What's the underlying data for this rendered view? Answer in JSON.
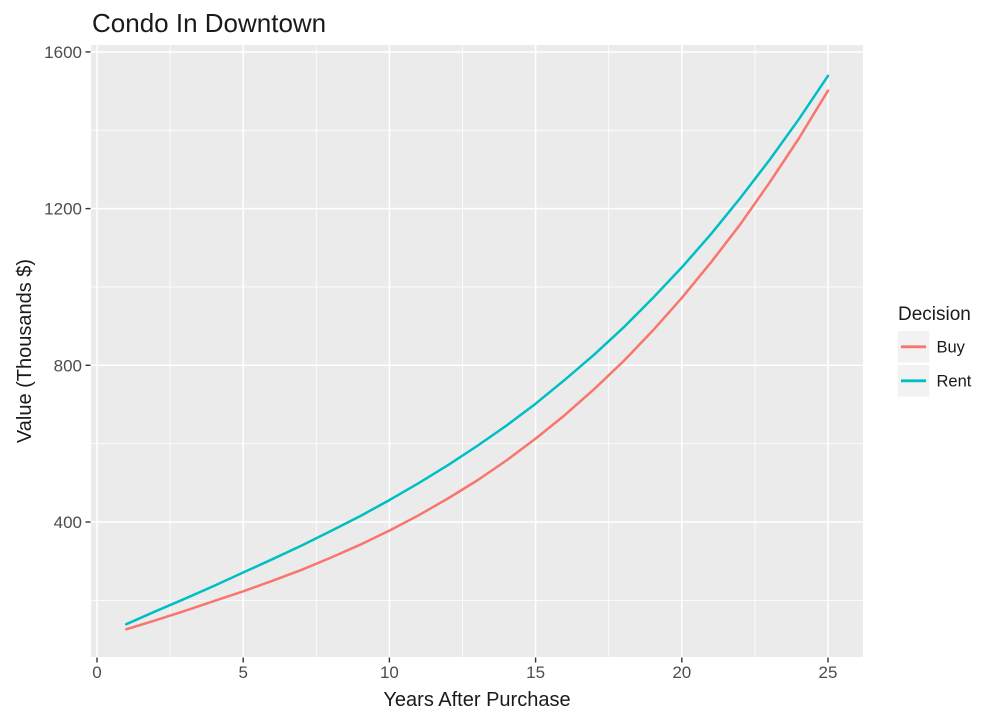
{
  "chart_data": {
    "type": "line",
    "title": "Condo In Downtown",
    "xlabel": "Years After Purchase",
    "ylabel": "Value (Thousands $)",
    "legend": {
      "title": "Decision",
      "position": "right"
    },
    "x_ticks": [
      0,
      5,
      10,
      15,
      20,
      25
    ],
    "y_ticks": [
      400,
      800,
      1200,
      1600
    ],
    "x_minor_ticks": [
      2.5,
      7.5,
      12.5,
      17.5,
      22.5
    ],
    "y_minor_ticks": [
      200,
      600,
      1000,
      1400
    ],
    "xlim": [
      -0.2,
      26.2
    ],
    "ylim": [
      55,
      1610
    ],
    "grid": "white major and minor gridlines on gray panel",
    "panel_bg": "#EBEBEB",
    "grid_color": "#FFFFFF",
    "x": [
      1,
      2,
      3,
      4,
      5,
      6,
      7,
      8,
      9,
      10,
      11,
      12,
      13,
      14,
      15,
      16,
      17,
      18,
      19,
      20,
      21,
      22,
      23,
      24,
      25
    ],
    "series": [
      {
        "name": "Buy",
        "color": "#F8766D",
        "values": [
          126,
          149,
          173,
          198,
          223,
          250,
          278,
          309,
          342,
          378,
          417,
          460,
          506,
          557,
          613,
          673,
          739,
          810,
          888,
          972,
          1063,
          1160,
          1266,
          1379,
          1501
        ]
      },
      {
        "name": "Rent",
        "color": "#00BFC4",
        "values": [
          139,
          172,
          204,
          237,
          271,
          305,
          340,
          377,
          415,
          456,
          499,
          545,
          594,
          646,
          702,
          763,
          827,
          896,
          971,
          1050,
          1135,
          1227,
          1324,
          1428,
          1539
        ]
      }
    ]
  }
}
